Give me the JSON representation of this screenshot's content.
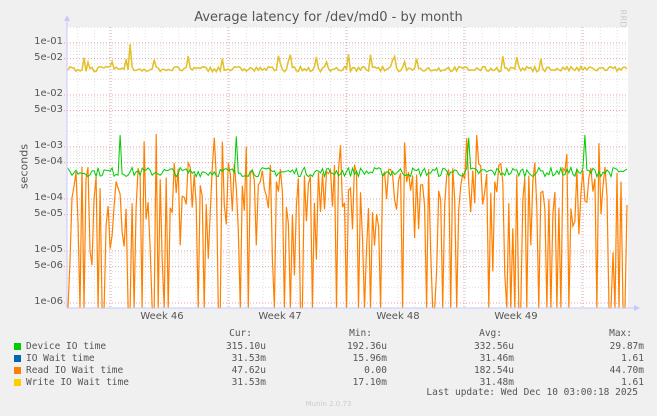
{
  "title": "Average latency for /dev/md0 - by month",
  "watermark": "RRDTOOL / TOBI OETIKER",
  "footer": "Munin 2.0.73",
  "chart_data": {
    "type": "line",
    "title": "Average latency for /dev/md0 - by month",
    "xlabel": "",
    "ylabel": "seconds",
    "yscale": "log",
    "ylim": [
      8e-07,
      0.2
    ],
    "y_ticks": [
      "1e-01",
      "5e-02",
      "1e-02",
      "5e-03",
      "1e-03",
      "5e-04",
      "1e-04",
      "5e-05",
      "1e-05",
      "5e-06",
      "1e-06"
    ],
    "x_ticks": [
      "Week 46",
      "Week 47",
      "Week 48",
      "Week 49"
    ],
    "grid": true,
    "legend_position": "bottom",
    "series": [
      {
        "name": "Device IO time",
        "color": "#00cc00",
        "typical": 0.00033,
        "spikes": [
          0.0017,
          0.0016,
          0.0015,
          0.0017
        ],
        "cur": "315.10u",
        "min": "192.36u",
        "avg": "332.56u",
        "max": "29.87m"
      },
      {
        "name": "IO Wait time",
        "color": "#0066b3",
        "typical": 0.0315,
        "cur": "31.53m",
        "min": "15.96m",
        "avg": "31.46m",
        "max": "1.61"
      },
      {
        "name": "Read IO Wait time",
        "color": "#ff8000",
        "typical": 0.00018,
        "range": [
          0,
          0.002
        ],
        "cur": "47.62u",
        "min": "0.00",
        "avg": "182.54u",
        "max": "44.70m"
      },
      {
        "name": "Write IO Wait time",
        "color": "#ffcc00",
        "typical": 0.0315,
        "spikes": [
          0.095,
          0.06,
          0.055
        ],
        "cur": "31.53m",
        "min": "17.10m",
        "avg": "31.48m",
        "max": "1.61"
      }
    ]
  },
  "legend": {
    "headers": {
      "cur": "Cur:",
      "min": "Min:",
      "avg": "Avg:",
      "max": "Max:"
    },
    "rows": [
      {
        "name": "Device IO time",
        "color": "#00cc00",
        "cur": "315.10u",
        "min": "192.36u",
        "avg": "332.56u",
        "max": "29.87m"
      },
      {
        "name": "IO Wait time",
        "color": "#0066b3",
        "cur": "31.53m",
        "min": "15.96m",
        "avg": "31.46m",
        "max": "1.61"
      },
      {
        "name": "Read IO Wait time",
        "color": "#ff8000",
        "cur": "47.62u",
        "min": "0.00",
        "avg": "182.54u",
        "max": "44.70m"
      },
      {
        "name": "Write IO Wait time",
        "color": "#ffcc00",
        "cur": "31.53m",
        "min": "17.10m",
        "avg": "31.48m",
        "max": "1.61"
      }
    ]
  },
  "last_update": "Last update: Wed Dec 10 03:00:18 2025"
}
